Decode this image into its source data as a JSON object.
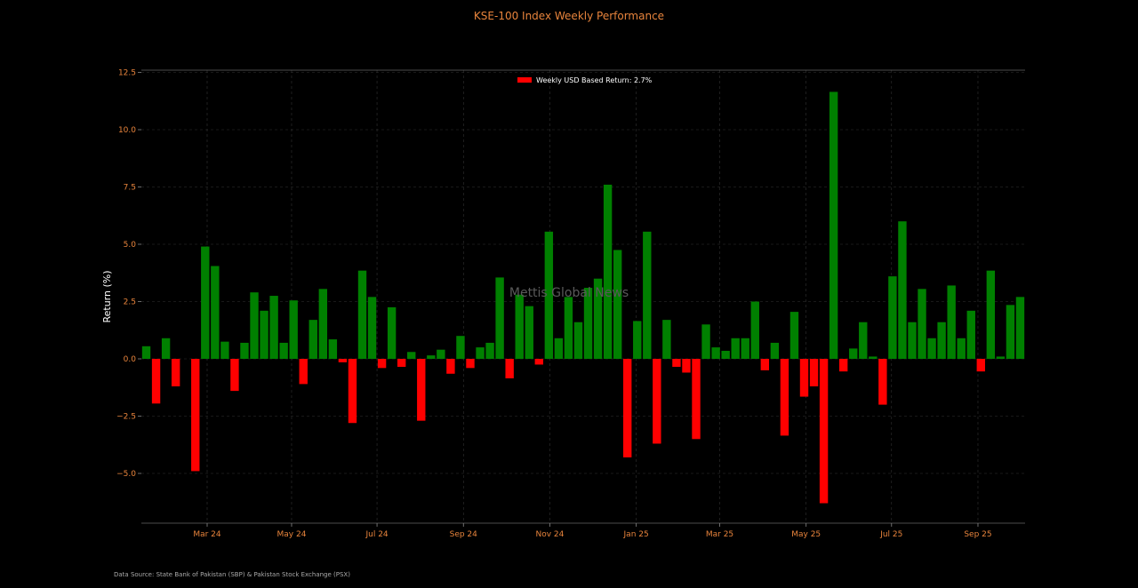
{
  "chart_data": {
    "type": "bar",
    "title": "KSE-100 Index Weekly Performance",
    "xlabel": "",
    "ylabel": "Return (%)",
    "ylim": [
      -7.2,
      12.5
    ],
    "yticks": [
      "12.5",
      "10.0",
      "7.5",
      "5.0",
      "2.5",
      "0.0",
      "−2.5",
      "−5.0"
    ],
    "ytick_values": [
      12.5,
      10.0,
      7.5,
      5.0,
      2.5,
      0.0,
      -2.5,
      -5.0
    ],
    "xticks": [
      "Mar 24",
      "May 24",
      "Jul 24",
      "Sep 24",
      "Nov 24",
      "Jan 25",
      "Mar 25",
      "May 25",
      "Jul 25",
      "Sep 25"
    ],
    "xtick_weeks": [
      6.2,
      14.8,
      23.5,
      32.3,
      41.1,
      49.9,
      58.4,
      67.2,
      75.9,
      84.7
    ],
    "legend": {
      "label": "Weekly USD Based Return: 2.7%",
      "position": "top-center",
      "color": "#ff0000"
    },
    "grid": true,
    "colors": {
      "positive": "#008000",
      "negative": "#ff0000"
    },
    "values": [
      0.55,
      -1.95,
      0.9,
      -1.2,
      0.0,
      -4.9,
      4.9,
      4.05,
      0.75,
      -1.4,
      0.7,
      2.9,
      2.1,
      2.75,
      0.7,
      2.55,
      -1.1,
      1.7,
      3.05,
      0.85,
      -0.15,
      -2.8,
      3.85,
      2.7,
      -0.4,
      2.25,
      -0.35,
      0.3,
      -2.7,
      0.15,
      0.4,
      -0.65,
      1.0,
      -0.4,
      0.5,
      0.7,
      3.55,
      -0.85,
      2.8,
      2.3,
      -0.25,
      5.55,
      0.9,
      2.7,
      1.6,
      3.1,
      3.5,
      7.6,
      4.75,
      -4.3,
      1.65,
      5.55,
      -3.7,
      1.7,
      -0.35,
      -0.6,
      -3.5,
      1.5,
      0.5,
      0.35,
      0.9,
      0.9,
      2.5,
      -0.5,
      0.7,
      -3.35,
      2.05,
      -1.65,
      -1.2,
      -6.3,
      11.65,
      -0.55,
      0.45,
      1.6,
      0.1,
      -2.0,
      3.6,
      6.0,
      1.6,
      3.05,
      0.9,
      1.6,
      3.2,
      0.9,
      2.1,
      -0.55,
      3.85,
      0.1,
      2.35,
      2.7
    ]
  },
  "watermark": "Mettis Global News",
  "source_note": "Data Source: State Bank of Pakistan (SBP) & Pakistan Stock Exchange (PSX)"
}
